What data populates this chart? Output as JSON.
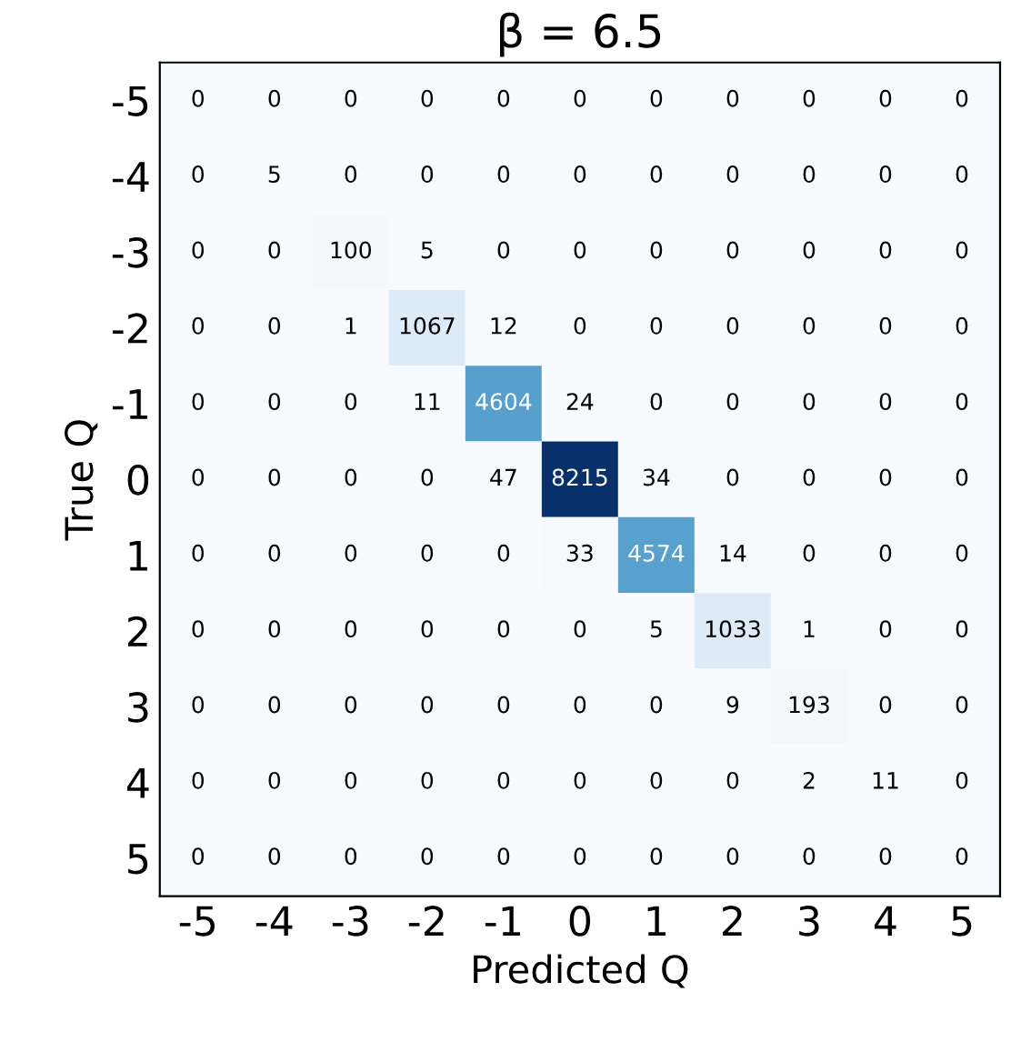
{
  "chart_data": {
    "type": "heatmap",
    "title": "β = 6.5",
    "xlabel": "Predicted Q",
    "ylabel": "True Q",
    "categories": [
      "-5",
      "-4",
      "-3",
      "-2",
      "-1",
      "0",
      "1",
      "2",
      "3",
      "4",
      "5"
    ],
    "y_categories": [
      "-5",
      "-4",
      "-3",
      "-2",
      "-1",
      "0",
      "1",
      "2",
      "3",
      "4",
      "5"
    ],
    "cells": [
      [
        0,
        0,
        0,
        0,
        0,
        0,
        0,
        0,
        0,
        0,
        0
      ],
      [
        0,
        5,
        0,
        0,
        0,
        0,
        0,
        0,
        0,
        0,
        0
      ],
      [
        0,
        0,
        100,
        5,
        0,
        0,
        0,
        0,
        0,
        0,
        0
      ],
      [
        0,
        0,
        1,
        1067,
        12,
        0,
        0,
        0,
        0,
        0,
        0
      ],
      [
        0,
        0,
        0,
        11,
        4604,
        24,
        0,
        0,
        0,
        0,
        0
      ],
      [
        0,
        0,
        0,
        0,
        47,
        8215,
        34,
        0,
        0,
        0,
        0
      ],
      [
        0,
        0,
        0,
        0,
        0,
        33,
        4574,
        14,
        0,
        0,
        0
      ],
      [
        0,
        0,
        0,
        0,
        0,
        0,
        5,
        1033,
        1,
        0,
        0
      ],
      [
        0,
        0,
        0,
        0,
        0,
        0,
        0,
        9,
        193,
        0,
        0
      ],
      [
        0,
        0,
        0,
        0,
        0,
        0,
        0,
        0,
        2,
        11,
        0
      ],
      [
        0,
        0,
        0,
        0,
        0,
        0,
        0,
        0,
        0,
        0,
        0
      ]
    ],
    "data_labels": true
  }
}
